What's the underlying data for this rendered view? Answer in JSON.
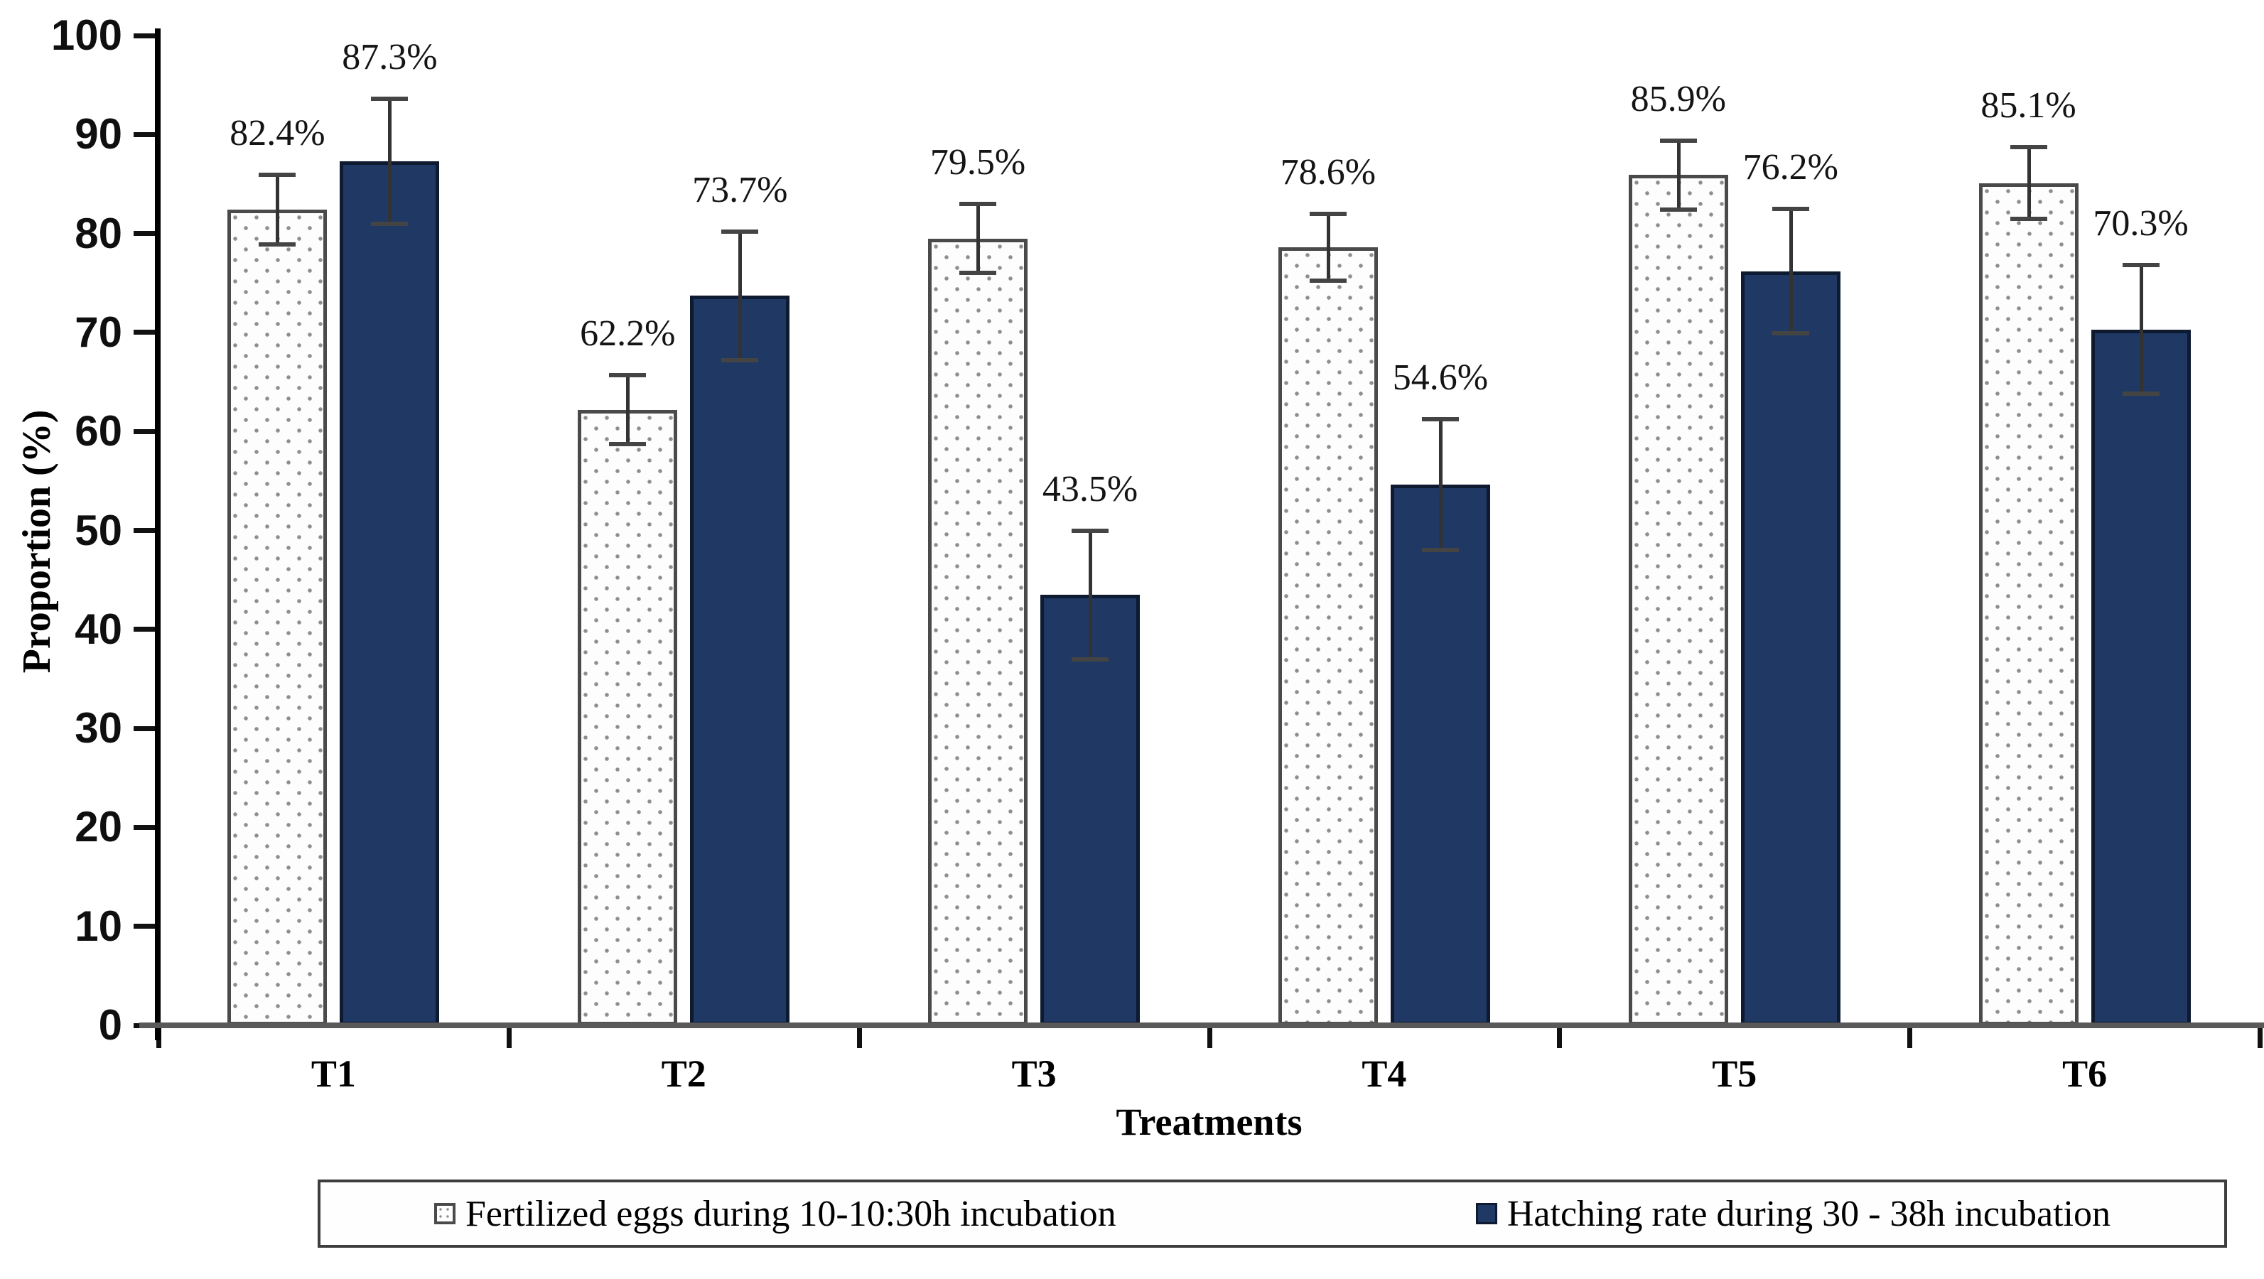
{
  "chart_data": {
    "type": "bar",
    "title": "",
    "categories": [
      "T1",
      "T2",
      "T3",
      "T4",
      "T5",
      "T6"
    ],
    "series": [
      {
        "name": "Fertilized eggs during 10-10:30h incubation",
        "values": [
          82.4,
          62.2,
          79.5,
          78.6,
          85.9,
          85.1
        ],
        "value_labels": [
          "82.4%",
          "62.2%",
          "79.5%",
          "78.6%",
          "85.9%",
          "85.1%"
        ],
        "errors": [
          3.5,
          3.5,
          3.5,
          3.4,
          3.5,
          3.6
        ],
        "style": "dotted-white"
      },
      {
        "name": "Hatching rate during 30 - 38h incubation",
        "values": [
          87.3,
          73.7,
          43.5,
          54.6,
          76.2,
          70.3
        ],
        "value_labels": [
          "87.3%",
          "73.7%",
          "43.5%",
          "54.6%",
          "76.2%",
          "70.3%"
        ],
        "errors": [
          6.3,
          6.5,
          6.5,
          6.6,
          6.3,
          6.5
        ],
        "style": "solid-navy"
      }
    ],
    "xlabel": "Treatments",
    "ylabel": "Proportion (%)",
    "ylim": [
      0,
      100
    ],
    "yticks": [
      0,
      10,
      20,
      30,
      40,
      50,
      60,
      70,
      80,
      90,
      100
    ],
    "grid": false,
    "error_bars": true,
    "legend_position": "bottom"
  },
  "colors": {
    "navy_bar": "#1f3864",
    "navy_bar_border": "#0d1a30",
    "light_bar_fill": "#fdfdfd",
    "light_bar_border": "#4a4a4a",
    "light_bar_dot": "#8e8e8e",
    "y_axis": "#000000",
    "x_axis": "#595959",
    "error_bar": "#333333",
    "legend_border": "#3d3d3d",
    "text": "#000000"
  }
}
